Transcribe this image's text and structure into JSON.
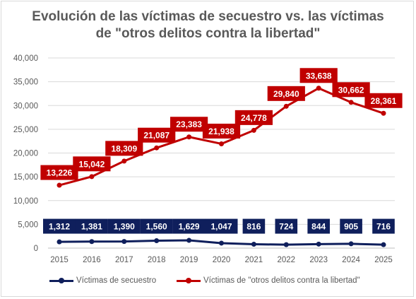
{
  "chart_data": {
    "type": "line",
    "title_line1": "Evolución de las víctimas de secuestro vs. las víctimas",
    "title_line2": "de \"otros delitos contra la libertad\"",
    "categories": [
      "2015",
      "2016",
      "2017",
      "2018",
      "2019",
      "2020",
      "2021",
      "2022",
      "2023",
      "2024",
      "2025"
    ],
    "series": [
      {
        "name": "Víctimas de secuestro",
        "color": "#0f1f5c",
        "values": [
          1312,
          1381,
          1390,
          1560,
          1629,
          1047,
          816,
          724,
          844,
          905,
          716
        ],
        "labels": [
          "1,312",
          "1,381",
          "1,390",
          "1,560",
          "1,629",
          "1,047",
          "816",
          "724",
          "844",
          "905",
          "716"
        ]
      },
      {
        "name": "Víctimas de \"otros delitos contra la libertad\"",
        "color": "#c00000",
        "values": [
          13226,
          15042,
          18309,
          21087,
          23383,
          21938,
          24778,
          29840,
          33638,
          30662,
          28361
        ],
        "labels": [
          "13,226",
          "15,042",
          "18,309",
          "21,087",
          "23,383",
          "21,938",
          "24,778",
          "29,840",
          "33,638",
          "30,662",
          "28,361"
        ]
      }
    ],
    "y_ticks": [
      0,
      5000,
      10000,
      15000,
      20000,
      25000,
      30000,
      35000,
      40000
    ],
    "y_tick_labels": [
      "0",
      "5,000",
      "10,000",
      "15,000",
      "20,000",
      "25,000",
      "30,000",
      "35,000",
      "40,000"
    ],
    "ylim": [
      0,
      40000
    ],
    "grid": true,
    "gridline_color": "#d9d9d9",
    "legend_position": "bottom"
  }
}
